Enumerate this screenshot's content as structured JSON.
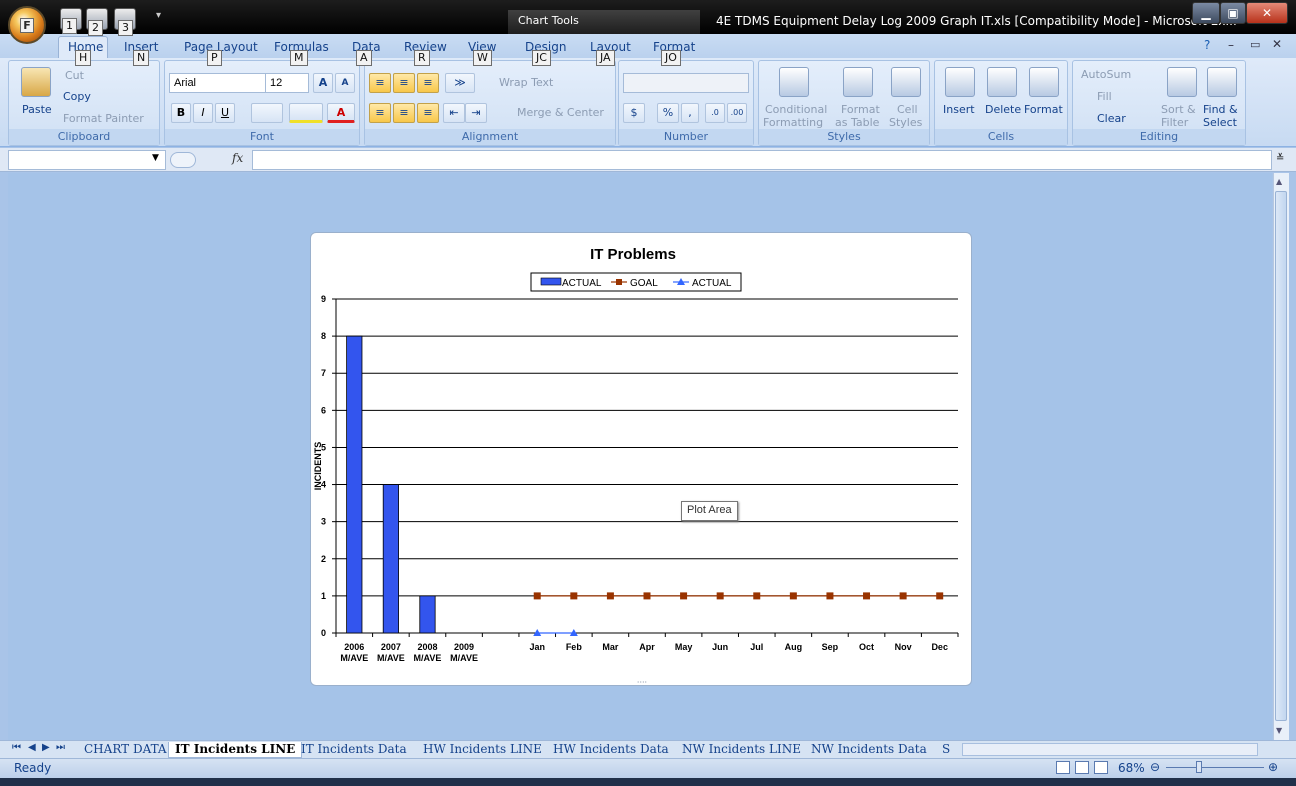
{
  "title_bar": {
    "chart_tools": "Chart Tools",
    "window_title": "4E TDMS Equipment Delay Log 2009 Graph IT.xls  [Compatibility Mode] - Microsoft Ex...",
    "orb_key": "F",
    "qat_keys": [
      "1",
      "2",
      "3"
    ]
  },
  "ribbon_tabs": [
    {
      "label": "Home",
      "key": "H"
    },
    {
      "label": "Insert",
      "key": "N"
    },
    {
      "label": "Page Layout",
      "key": "P"
    },
    {
      "label": "Formulas",
      "key": "M"
    },
    {
      "label": "Data",
      "key": "A"
    },
    {
      "label": "Review",
      "key": "R"
    },
    {
      "label": "View",
      "key": "W"
    },
    {
      "label": "Design",
      "key": "JC"
    },
    {
      "label": "Layout",
      "key": "JA"
    },
    {
      "label": "Format",
      "key": "JO"
    }
  ],
  "clipboard": {
    "paste": "Paste",
    "cut": "Cut",
    "copy": "Copy",
    "format_painter": "Format Painter",
    "label": "Clipboard"
  },
  "font": {
    "name": "Arial",
    "size": "12",
    "label": "Font",
    "bold": "B",
    "italic": "I",
    "underline": "U",
    "grow": "A",
    "shrink": "A"
  },
  "alignment": {
    "wrap_text": "Wrap Text",
    "merge_center": "Merge & Center",
    "label": "Alignment"
  },
  "number": {
    "currency": "$",
    "percent": "%",
    "comma": ",",
    "label": "Number"
  },
  "styles": {
    "conditional_1": "Conditional",
    "conditional_2": "Formatting",
    "format_table_1": "Format",
    "format_table_2": "as Table",
    "cell_styles_1": "Cell",
    "cell_styles_2": "Styles",
    "label": "Styles"
  },
  "cells": {
    "insert": "Insert",
    "delete": "Delete",
    "format": "Format",
    "label": "Cells"
  },
  "editing": {
    "autosum": "AutoSum",
    "fill": "Fill",
    "clear": "Clear",
    "sort_1": "Sort &",
    "sort_2": "Filter",
    "find_1": "Find &",
    "find_2": "Select",
    "label": "Editing"
  },
  "formula_bar": {
    "fx": "fx"
  },
  "tooltip": "Plot Area",
  "chart_data": {
    "type": "bar",
    "title": "IT Problems",
    "ylabel": "INCIDENTS",
    "ylim": [
      0,
      9
    ],
    "yticks": [
      "0",
      "1",
      "2",
      "3",
      "4",
      "5",
      "6",
      "7",
      "8",
      "9"
    ],
    "categories": [
      [
        "2006",
        "M/AVE"
      ],
      [
        "2007",
        "M/AVE"
      ],
      [
        "2008",
        "M/AVE"
      ],
      [
        "2009",
        "M/AVE"
      ],
      [
        ""
      ],
      [
        "Jan"
      ],
      [
        "Feb"
      ],
      [
        "Mar"
      ],
      [
        "Apr"
      ],
      [
        "May"
      ],
      [
        "Jun"
      ],
      [
        "Jul"
      ],
      [
        "Aug"
      ],
      [
        "Sep"
      ],
      [
        "Oct"
      ],
      [
        "Nov"
      ],
      [
        "Dec"
      ]
    ],
    "series": [
      {
        "name": "ACTUAL",
        "kind": "bar",
        "color": "#3355ee",
        "values": [
          8,
          4,
          1,
          null,
          null,
          null,
          null,
          null,
          null,
          null,
          null,
          null,
          null,
          null,
          null,
          null,
          null
        ]
      },
      {
        "name": "GOAL",
        "kind": "line",
        "color": "#993300",
        "values": [
          null,
          null,
          null,
          null,
          null,
          1,
          1,
          1,
          1,
          1,
          1,
          1,
          1,
          1,
          1,
          1,
          1
        ]
      },
      {
        "name": "ACTUAL",
        "kind": "line",
        "color": "#3366ff",
        "values": [
          null,
          null,
          null,
          null,
          null,
          0,
          0,
          null,
          null,
          null,
          null,
          null,
          null,
          null,
          null,
          null,
          null
        ]
      }
    ],
    "legend_position": "top",
    "grid": true
  },
  "sheet_tabs": [
    "CHART DATA",
    "IT Incidents LINE",
    "IT Incidents Data",
    "HW Incidents LINE",
    "HW Incidents Data",
    "NW Incidents LINE",
    "NW Incidents Data",
    "S"
  ],
  "active_sheet": "IT Incidents LINE",
  "status": {
    "ready": "Ready",
    "zoom": "68%"
  }
}
